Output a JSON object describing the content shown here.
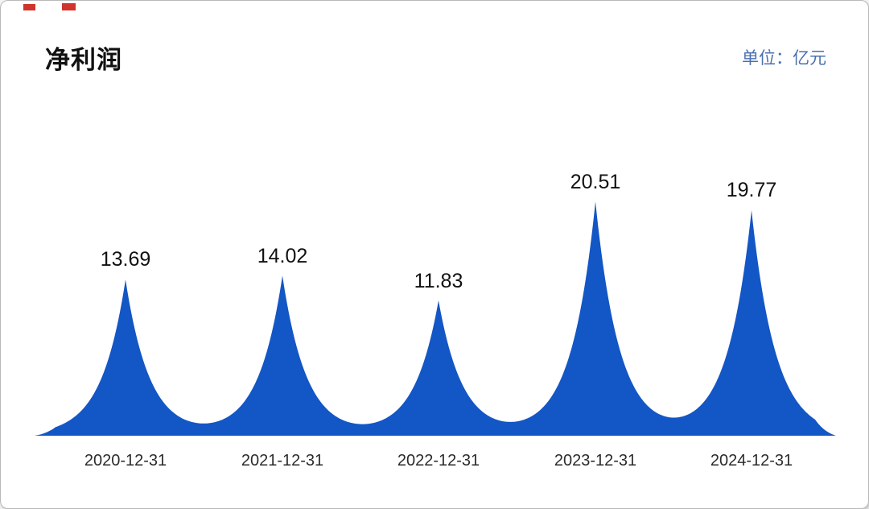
{
  "header": {
    "title": "净利润",
    "unit_label": "单位：亿元"
  },
  "chart_data": {
    "type": "area",
    "title": "净利润",
    "ylabel": "亿元",
    "categories": [
      "2020-12-31",
      "2021-12-31",
      "2022-12-31",
      "2023-12-31",
      "2024-12-31"
    ],
    "values": [
      13.69,
      14.02,
      11.83,
      20.51,
      19.77
    ],
    "value_labels": [
      "13.69",
      "14.02",
      "11.83",
      "20.51",
      "19.77"
    ],
    "peak_style": "sharp",
    "grid": "off",
    "legend": "none",
    "fill_color": "#1356c5"
  },
  "colors": {
    "accent_blue": "#1356c5",
    "unit_text": "#4a6fb0",
    "red_marks": "#d0342c",
    "title_text": "#111111",
    "axis_text": "#2b2b2b"
  }
}
